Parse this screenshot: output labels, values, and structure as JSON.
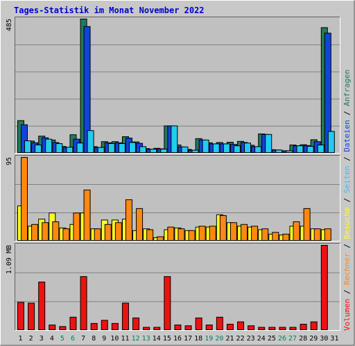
{
  "chart_data": {
    "type": "bar",
    "title": "Tages-Statistik im Monat November 2022",
    "days": [
      "1",
      "2",
      "3",
      "4",
      "5",
      "6",
      "7",
      "8",
      "9",
      "10",
      "11",
      "12",
      "13",
      "14",
      "15",
      "16",
      "17",
      "18",
      "19",
      "20",
      "21",
      "22",
      "23",
      "24",
      "25",
      "26",
      "27",
      "28",
      "29",
      "30",
      "31"
    ],
    "weekend_days": [
      "5",
      "6",
      "12",
      "13",
      "19",
      "20",
      "26",
      "27"
    ],
    "colors": {
      "background": "#c8c8c8",
      "panel": "#c0c0c0",
      "title": "#0000cc",
      "weekday_label": "#000000",
      "weekend_label": "#008060",
      "anfragen": "#227a5a",
      "dateien": "#1144dd",
      "seiten": "#22ccee",
      "besuche": "#ffff22",
      "rechner": "#ff8811",
      "volumen": "#ee1111"
    },
    "panels": [
      {
        "id": "hits",
        "max_label": "485",
        "max": 485,
        "series": [
          {
            "name": "Anfragen",
            "values": [
              118,
              44,
              62,
              48,
              25,
              67,
              485,
              24,
              42,
              42,
              60,
              41,
              17,
              18,
              99,
              30,
              14,
              53,
              38,
              39,
              40,
              43,
              29,
              70,
              13,
              9,
              30,
              31,
              49,
              454
            ]
          },
          {
            "name": "Dateien",
            "values": [
              103,
              38,
              56,
              39,
              20,
              51,
              458,
              21,
              38,
              38,
              55,
              36,
              15,
              16,
              99,
              23,
              11,
              48,
              34,
              34,
              32,
              39,
              24,
              68,
              12,
              9,
              27,
              28,
              42,
              434
            ]
          },
          {
            "name": "Seiten",
            "values": [
              45,
              30,
              51,
              35,
              22,
              37,
              82,
              21,
              35,
              35,
              39,
              24,
              15,
              15,
              99,
              23,
              11,
              48,
              34,
              34,
              27,
              37,
              24,
              68,
              12,
              9,
              27,
              25,
              30,
              79
            ]
          }
        ]
      },
      {
        "id": "visits",
        "max_label": "95",
        "max": 95,
        "series": [
          {
            "name": "Besuche",
            "values": [
              40,
              17,
              25,
              32,
              15,
              19,
              32,
              14,
              24,
              24,
              25,
              12,
              14,
              4,
              13,
              15,
              12,
              16,
              16,
              30,
              21,
              17,
              16,
              13,
              8,
              7,
              17,
              17,
              14,
              13
            ]
          },
          {
            "name": "Rechner",
            "values": [
              95,
              19,
              21,
              22,
              14,
              32,
              58,
              14,
              19,
              21,
              47,
              37,
              13,
              5,
              16,
              14,
              12,
              17,
              17,
              29,
              21,
              19,
              17,
              14,
              10,
              8,
              22,
              37,
              14,
              14
            ]
          }
        ]
      },
      {
        "id": "volume",
        "max_label": "1.09 MB",
        "max": 1.09,
        "series": [
          {
            "name": "Volumen",
            "values": [
              0.36,
              0.35,
              0.62,
              0.07,
              0.05,
              0.17,
              0.69,
              0.09,
              0.13,
              0.09,
              0.35,
              0.16,
              0.04,
              0.04,
              0.69,
              0.07,
              0.06,
              0.16,
              0.07,
              0.17,
              0.08,
              0.11,
              0.06,
              0.04,
              0.04,
              0.04,
              0.04,
              0.08,
              0.11,
              1.09
            ]
          }
        ]
      }
    ],
    "legend": {
      "placement": "right-vertical",
      "separator": "/",
      "entries": [
        {
          "label": "Volumen",
          "color": "#ee1111"
        },
        {
          "label": "Rechner",
          "color": "#ff8811"
        },
        {
          "label": "Besuche",
          "color": "#ffff22"
        },
        {
          "label": "Seiten",
          "color": "#22ccee"
        },
        {
          "label": "Dateien",
          "color": "#1144dd"
        },
        {
          "label": "Anfragen",
          "color": "#227a5a"
        }
      ]
    }
  }
}
